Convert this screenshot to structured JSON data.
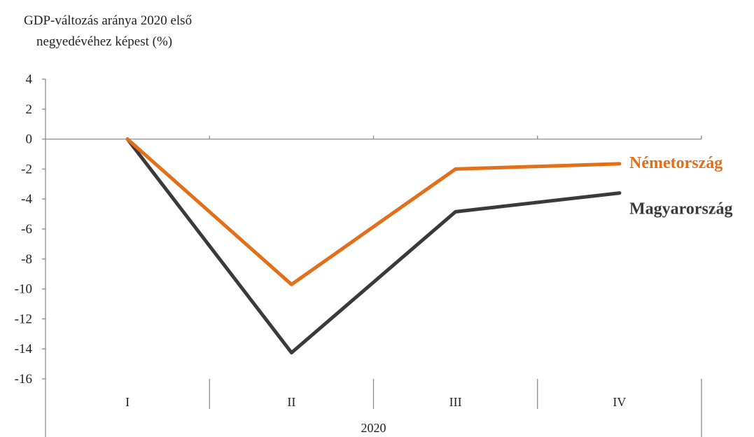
{
  "chart_data": {
    "type": "line",
    "ylabel_lines": [
      "GDP-változás aránya 2020 első",
      "negyedévéhez  képest (%)"
    ],
    "xlabel": "",
    "categories": [
      "I",
      "II",
      "III",
      "IV"
    ],
    "group_label": "2020",
    "ylim": [
      -16,
      4
    ],
    "yticks": [
      4,
      2,
      0,
      -2,
      -4,
      -6,
      -8,
      -10,
      -12,
      -14,
      -16
    ],
    "grid": false,
    "legend": "inline labels at line ends",
    "series": [
      {
        "name": "Németország",
        "color": "#E26F1A",
        "values": [
          0,
          -9.7,
          -2.0,
          -1.65
        ]
      },
      {
        "name": "Magyarország",
        "color": "#3A3A3A",
        "values": [
          0,
          -14.25,
          -4.85,
          -3.6
        ]
      }
    ]
  }
}
